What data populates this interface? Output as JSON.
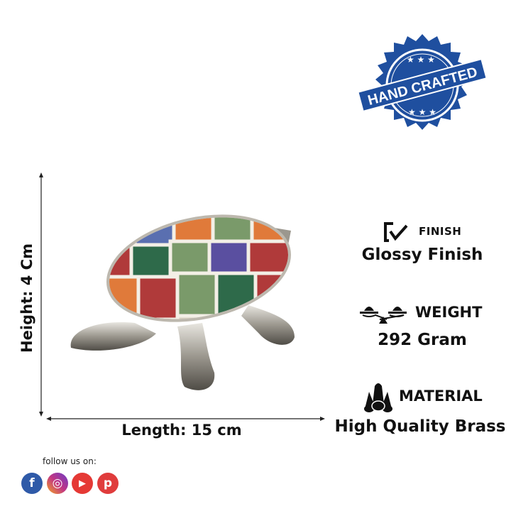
{
  "badge": {
    "text": "HAND CRAFTED",
    "color": "#1f4f9f"
  },
  "dimensions": {
    "height_label": "Height: 4 Cm",
    "length_label": "Length: 15 cm"
  },
  "specs": [
    {
      "icon": "checkbox-icon",
      "title": "FINISH",
      "value": "Glossy Finish"
    },
    {
      "icon": "scale-icon",
      "title": "WEIGHT",
      "value": "292 Gram"
    },
    {
      "icon": "material-icon",
      "title": "MATERIAL",
      "value": "High Quality Brass"
    }
  ],
  "social": {
    "label": "follow us on:",
    "icons": [
      {
        "name": "facebook-icon",
        "glyph": "f",
        "color": "#2f5aa8"
      },
      {
        "name": "instagram-icon",
        "glyph": "◎",
        "color": "#c13584"
      },
      {
        "name": "youtube-icon",
        "glyph": "▶",
        "color": "#e53935"
      },
      {
        "name": "pinterest-icon",
        "glyph": "p",
        "color": "#e03c3c"
      }
    ]
  }
}
